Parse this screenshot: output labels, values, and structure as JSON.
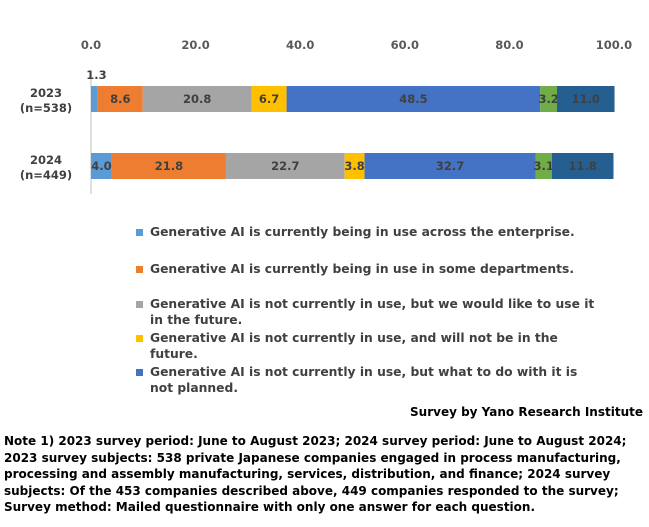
{
  "chart_data": {
    "type": "bar",
    "orientation": "horizontal",
    "stacked": true,
    "categories": [
      "2023\n(n=538)",
      "2024\n(n=449)"
    ],
    "category_lines": [
      [
        "2023",
        "(n=538)"
      ],
      [
        "2024",
        "(n=449)"
      ]
    ],
    "series": [
      {
        "name": "Generative AI is currently being in use across the enterprise.",
        "color": "#5B9BD5",
        "values": [
          1.3,
          4.0
        ]
      },
      {
        "name": "Generative AI is currently being in use in some departments.",
        "color": "#ED7D31",
        "values": [
          8.6,
          21.8
        ]
      },
      {
        "name": "Generative AI is not currently in use, but we would like to use it in the future.",
        "color": "#A5A5A5",
        "values": [
          20.8,
          22.7
        ]
      },
      {
        "name": "Generative AI is not currently in use, and will not be in the future.",
        "color": "#FFC000",
        "values": [
          6.7,
          3.8
        ]
      },
      {
        "name": "Generative AI is not currently in use, but what to do with it is not planned.",
        "color": "#4472C4",
        "values": [
          48.5,
          32.7
        ]
      },
      {
        "name": "",
        "color": "#70AD47",
        "values": [
          3.2,
          3.1
        ]
      },
      {
        "name": "",
        "color": "#255E91",
        "values": [
          11.0,
          11.8
        ]
      }
    ],
    "xlim": [
      0,
      100
    ],
    "xticks": [
      "0.0",
      "20.0",
      "40.0",
      "60.0",
      "80.0",
      "100.0"
    ],
    "xtick_values": [
      0,
      20,
      40,
      60,
      80,
      100
    ],
    "axis_position": "top",
    "grid": false,
    "legend_position": "bottom"
  },
  "source": "Survey by Yano Research Institute",
  "note": "Note 1) 2023 survey period: June to August 2023; 2024 survey period: June to August 2024;  2023 survey subjects: 538 private Japanese companies engaged in process manufacturing, processing and assembly manufacturing, services, distribution, and finance; 2024 survey subjects: Of the 453 companies described above, 449 companies responded to the survey; Survey method: Mailed questionnaire with only one answer for each question."
}
